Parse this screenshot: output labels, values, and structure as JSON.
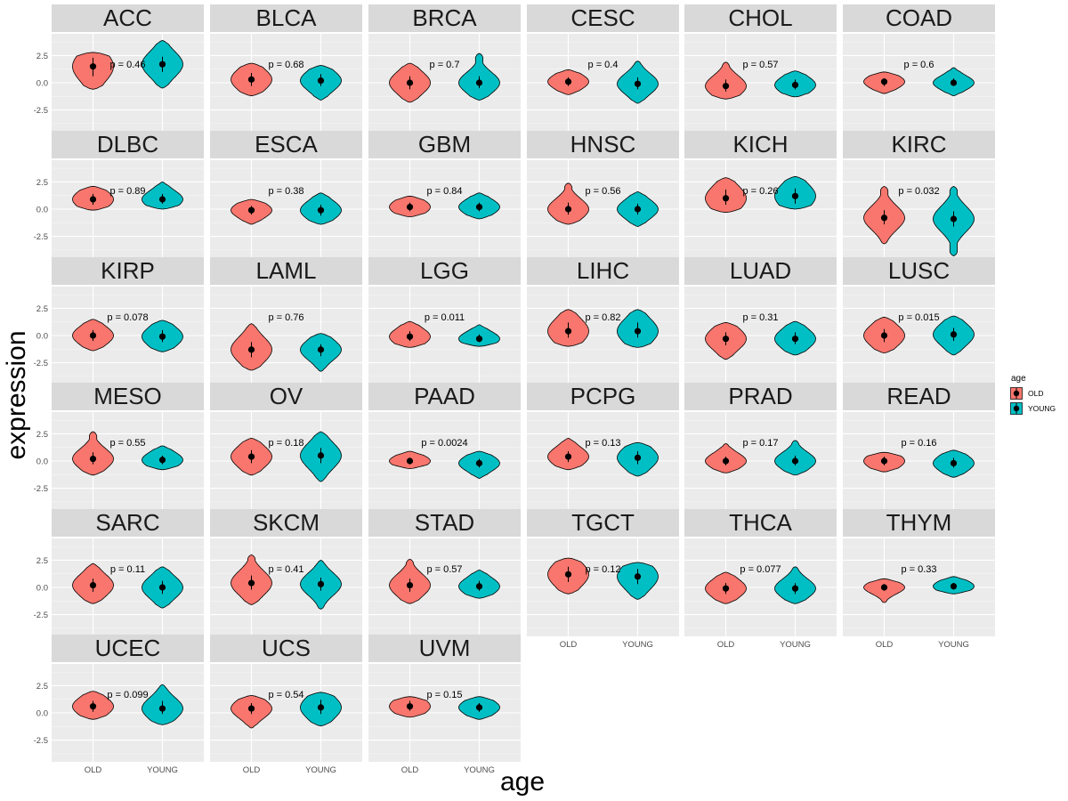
{
  "chart_data": {
    "type": "violin",
    "xlabel": "age",
    "ylabel": "expression",
    "categories": [
      "OLD",
      "YOUNG"
    ],
    "ylim": [
      -4.5,
      4.5
    ],
    "yticks": [
      -2.5,
      0.0,
      2.5
    ],
    "ytick_labels": [
      "-2.5",
      "0.0",
      "2.5"
    ],
    "legend": {
      "title": "age",
      "position": "right",
      "entries": [
        {
          "label": "OLD",
          "color": "#F8766D"
        },
        {
          "label": "YOUNG",
          "color": "#00BFC4"
        }
      ]
    },
    "panels": [
      {
        "name": "ACC",
        "p_label": "p = 0.46",
        "groups": [
          {
            "center": 1.5,
            "low": -0.6,
            "high": 2.8,
            "q1": 0.6,
            "q3": 2.3
          },
          {
            "center": 1.7,
            "low": -0.5,
            "high": 3.9,
            "q1": 1.0,
            "q3": 2.4
          }
        ]
      },
      {
        "name": "BLCA",
        "p_label": "p = 0.68",
        "groups": [
          {
            "center": 0.3,
            "low": -1.2,
            "high": 1.8,
            "q1": -0.3,
            "q3": 0.9
          },
          {
            "center": 0.2,
            "low": -1.6,
            "high": 1.6,
            "q1": -0.3,
            "q3": 0.8
          }
        ]
      },
      {
        "name": "BRCA",
        "p_label": "p = 0.7",
        "groups": [
          {
            "center": 0.0,
            "low": -1.8,
            "high": 1.8,
            "q1": -0.6,
            "q3": 0.6
          },
          {
            "center": 0.0,
            "low": -1.6,
            "high": 2.7,
            "q1": -0.5,
            "q3": 0.6
          }
        ]
      },
      {
        "name": "CESC",
        "p_label": "p = 0.4",
        "groups": [
          {
            "center": 0.1,
            "low": -1.1,
            "high": 1.2,
            "q1": -0.3,
            "q3": 0.5
          },
          {
            "center": -0.1,
            "low": -1.9,
            "high": 2.0,
            "q1": -0.6,
            "q3": 0.5
          }
        ]
      },
      {
        "name": "CHOL",
        "p_label": "p = 0.57",
        "groups": [
          {
            "center": -0.3,
            "low": -1.5,
            "high": 1.9,
            "q1": -0.8,
            "q3": 0.3
          },
          {
            "center": -0.2,
            "low": -1.3,
            "high": 1.1,
            "q1": -0.6,
            "q3": 0.3
          }
        ]
      },
      {
        "name": "COAD",
        "p_label": "p = 0.6",
        "groups": [
          {
            "center": 0.1,
            "low": -1.0,
            "high": 1.0,
            "q1": -0.3,
            "q3": 0.4
          },
          {
            "center": 0.0,
            "low": -1.2,
            "high": 1.4,
            "q1": -0.3,
            "q3": 0.4
          }
        ]
      },
      {
        "name": "DLBC",
        "p_label": "p = 0.89",
        "groups": [
          {
            "center": 0.9,
            "low": -0.1,
            "high": 2.1,
            "q1": 0.4,
            "q3": 1.4
          },
          {
            "center": 0.9,
            "low": 0.0,
            "high": 2.5,
            "q1": 0.5,
            "q3": 1.4
          }
        ]
      },
      {
        "name": "ESCA",
        "p_label": "p = 0.38",
        "groups": [
          {
            "center": -0.1,
            "low": -1.4,
            "high": 0.9,
            "q1": -0.5,
            "q3": 0.3
          },
          {
            "center": -0.1,
            "low": -1.4,
            "high": 1.5,
            "q1": -0.6,
            "q3": 0.4
          }
        ]
      },
      {
        "name": "GBM",
        "p_label": "p = 0.84",
        "groups": [
          {
            "center": 0.2,
            "low": -0.7,
            "high": 1.2,
            "q1": -0.2,
            "q3": 0.6
          },
          {
            "center": 0.2,
            "low": -0.9,
            "high": 1.5,
            "q1": -0.2,
            "q3": 0.6
          }
        ]
      },
      {
        "name": "HNSC",
        "p_label": "p = 0.56",
        "groups": [
          {
            "center": 0.0,
            "low": -1.4,
            "high": 2.4,
            "q1": -0.5,
            "q3": 0.6
          },
          {
            "center": 0.0,
            "low": -1.6,
            "high": 1.6,
            "q1": -0.5,
            "q3": 0.5
          }
        ]
      },
      {
        "name": "KICH",
        "p_label": "p = 0.26",
        "groups": [
          {
            "center": 1.0,
            "low": -0.3,
            "high": 2.9,
            "q1": 0.4,
            "q3": 1.8
          },
          {
            "center": 1.2,
            "low": 0.0,
            "high": 3.0,
            "q1": 0.5,
            "q3": 1.9
          }
        ]
      },
      {
        "name": "KIRC",
        "p_label": "p = 0.032",
        "groups": [
          {
            "center": -0.8,
            "low": -3.2,
            "high": 2.1,
            "q1": -1.4,
            "q3": -0.1
          },
          {
            "center": -0.9,
            "low": -4.3,
            "high": 2.1,
            "q1": -1.6,
            "q3": -0.2
          }
        ]
      },
      {
        "name": "KIRP",
        "p_label": "p = 0.078",
        "groups": [
          {
            "center": 0.0,
            "low": -1.4,
            "high": 1.5,
            "q1": -0.5,
            "q3": 0.5
          },
          {
            "center": -0.1,
            "low": -1.5,
            "high": 1.4,
            "q1": -0.6,
            "q3": 0.5
          }
        ]
      },
      {
        "name": "LAML",
        "p_label": "p = 0.76",
        "groups": [
          {
            "center": -1.3,
            "low": -3.2,
            "high": 1.1,
            "q1": -2.0,
            "q3": -0.6
          },
          {
            "center": -1.3,
            "low": -3.3,
            "high": 0.2,
            "q1": -1.9,
            "q3": -0.8
          }
        ]
      },
      {
        "name": "LGG",
        "p_label": "p = 0.011",
        "groups": [
          {
            "center": -0.1,
            "low": -1.1,
            "high": 1.3,
            "q1": -0.5,
            "q3": 0.4
          },
          {
            "center": -0.3,
            "low": -1.0,
            "high": 1.0,
            "q1": -0.6,
            "q3": 0.1
          }
        ]
      },
      {
        "name": "LIHC",
        "p_label": "p = 0.82",
        "groups": [
          {
            "center": 0.4,
            "low": -1.0,
            "high": 2.4,
            "q1": -0.2,
            "q3": 1.2
          },
          {
            "center": 0.4,
            "low": -1.1,
            "high": 2.4,
            "q1": -0.2,
            "q3": 1.2
          }
        ]
      },
      {
        "name": "LUAD",
        "p_label": "p = 0.31",
        "groups": [
          {
            "center": -0.3,
            "low": -2.2,
            "high": 1.2,
            "q1": -0.9,
            "q3": 0.3
          },
          {
            "center": -0.3,
            "low": -1.8,
            "high": 1.3,
            "q1": -0.8,
            "q3": 0.3
          }
        ]
      },
      {
        "name": "LUSC",
        "p_label": "p = 0.015",
        "groups": [
          {
            "center": 0.0,
            "low": -1.6,
            "high": 1.7,
            "q1": -0.6,
            "q3": 0.6
          },
          {
            "center": 0.1,
            "low": -1.8,
            "high": 1.8,
            "q1": -0.5,
            "q3": 0.7
          }
        ]
      },
      {
        "name": "MESO",
        "p_label": "p = 0.55",
        "groups": [
          {
            "center": 0.2,
            "low": -1.3,
            "high": 2.7,
            "q1": -0.3,
            "q3": 0.8
          },
          {
            "center": 0.1,
            "low": -0.8,
            "high": 1.4,
            "q1": -0.3,
            "q3": 0.5
          }
        ]
      },
      {
        "name": "OV",
        "p_label": "p = 0.18",
        "groups": [
          {
            "center": 0.4,
            "low": -1.3,
            "high": 2.1,
            "q1": -0.2,
            "q3": 1.0
          },
          {
            "center": 0.5,
            "low": -1.9,
            "high": 2.7,
            "q1": -0.2,
            "q3": 1.2
          }
        ]
      },
      {
        "name": "PAAD",
        "p_label": "p = 0.0024",
        "groups": [
          {
            "center": 0.0,
            "low": -0.7,
            "high": 0.9,
            "q1": -0.3,
            "q3": 0.3
          },
          {
            "center": -0.2,
            "low": -1.6,
            "high": 0.9,
            "q1": -0.6,
            "q3": 0.2
          }
        ]
      },
      {
        "name": "PCPG",
        "p_label": "p = 0.13",
        "groups": [
          {
            "center": 0.4,
            "low": -0.8,
            "high": 2.1,
            "q1": -0.1,
            "q3": 0.9
          },
          {
            "center": 0.3,
            "low": -1.4,
            "high": 1.7,
            "q1": -0.3,
            "q3": 0.9
          }
        ]
      },
      {
        "name": "PRAD",
        "p_label": "p = 0.17",
        "groups": [
          {
            "center": 0.0,
            "low": -1.1,
            "high": 1.6,
            "q1": -0.4,
            "q3": 0.4
          },
          {
            "center": 0.0,
            "low": -1.3,
            "high": 1.9,
            "q1": -0.4,
            "q3": 0.5
          }
        ]
      },
      {
        "name": "READ",
        "p_label": "p = 0.16",
        "groups": [
          {
            "center": 0.0,
            "low": -1.0,
            "high": 0.8,
            "q1": -0.4,
            "q3": 0.4
          },
          {
            "center": -0.2,
            "low": -1.5,
            "high": 1.0,
            "q1": -0.6,
            "q3": 0.3
          }
        ]
      },
      {
        "name": "SARC",
        "p_label": "p = 0.11",
        "groups": [
          {
            "center": 0.2,
            "low": -1.5,
            "high": 2.2,
            "q1": -0.4,
            "q3": 0.8
          },
          {
            "center": 0.0,
            "low": -1.9,
            "high": 1.9,
            "q1": -0.6,
            "q3": 0.6
          }
        ]
      },
      {
        "name": "SKCM",
        "p_label": "p = 0.41",
        "groups": [
          {
            "center": 0.4,
            "low": -1.6,
            "high": 3.0,
            "q1": -0.2,
            "q3": 1.1
          },
          {
            "center": 0.3,
            "low": -2.0,
            "high": 2.5,
            "q1": -0.3,
            "q3": 0.9
          }
        ]
      },
      {
        "name": "STAD",
        "p_label": "p = 0.57",
        "groups": [
          {
            "center": 0.2,
            "low": -1.5,
            "high": 2.6,
            "q1": -0.4,
            "q3": 0.8
          },
          {
            "center": 0.1,
            "low": -1.0,
            "high": 1.6,
            "q1": -0.3,
            "q3": 0.6
          }
        ]
      },
      {
        "name": "TGCT",
        "p_label": "p = 0.12",
        "groups": [
          {
            "center": 1.2,
            "low": -0.6,
            "high": 2.7,
            "q1": 0.5,
            "q3": 1.9
          },
          {
            "center": 1.0,
            "low": -1.1,
            "high": 2.3,
            "q1": 0.3,
            "q3": 1.7
          }
        ]
      },
      {
        "name": "THCA",
        "p_label": "p = 0.077",
        "groups": [
          {
            "center": -0.1,
            "low": -1.5,
            "high": 1.4,
            "q1": -0.6,
            "q3": 0.4
          },
          {
            "center": -0.1,
            "low": -1.5,
            "high": 1.9,
            "q1": -0.6,
            "q3": 0.4
          }
        ]
      },
      {
        "name": "THYM",
        "p_label": "p = 0.33",
        "groups": [
          {
            "center": 0.0,
            "low": -1.4,
            "high": 0.8,
            "q1": -0.3,
            "q3": 0.3
          },
          {
            "center": 0.1,
            "low": -0.6,
            "high": 1.0,
            "q1": -0.2,
            "q3": 0.4
          }
        ]
      },
      {
        "name": "UCEC",
        "p_label": "p = 0.099",
        "groups": [
          {
            "center": 0.6,
            "low": -0.6,
            "high": 2.0,
            "q1": 0.1,
            "q3": 1.1
          },
          {
            "center": 0.4,
            "low": -1.1,
            "high": 2.6,
            "q1": -0.1,
            "q3": 1.1
          }
        ]
      },
      {
        "name": "UCS",
        "p_label": "p = 0.54",
        "groups": [
          {
            "center": 0.4,
            "low": -1.4,
            "high": 1.6,
            "q1": -0.1,
            "q3": 0.9
          },
          {
            "center": 0.5,
            "low": -1.2,
            "high": 1.9,
            "q1": -0.1,
            "q3": 1.2
          }
        ]
      },
      {
        "name": "UVM",
        "p_label": "p = 0.15",
        "groups": [
          {
            "center": 0.6,
            "low": -0.4,
            "high": 1.5,
            "q1": 0.2,
            "q3": 1.1
          },
          {
            "center": 0.5,
            "low": -0.6,
            "high": 1.5,
            "q1": 0.1,
            "q3": 0.9
          }
        ]
      }
    ]
  }
}
